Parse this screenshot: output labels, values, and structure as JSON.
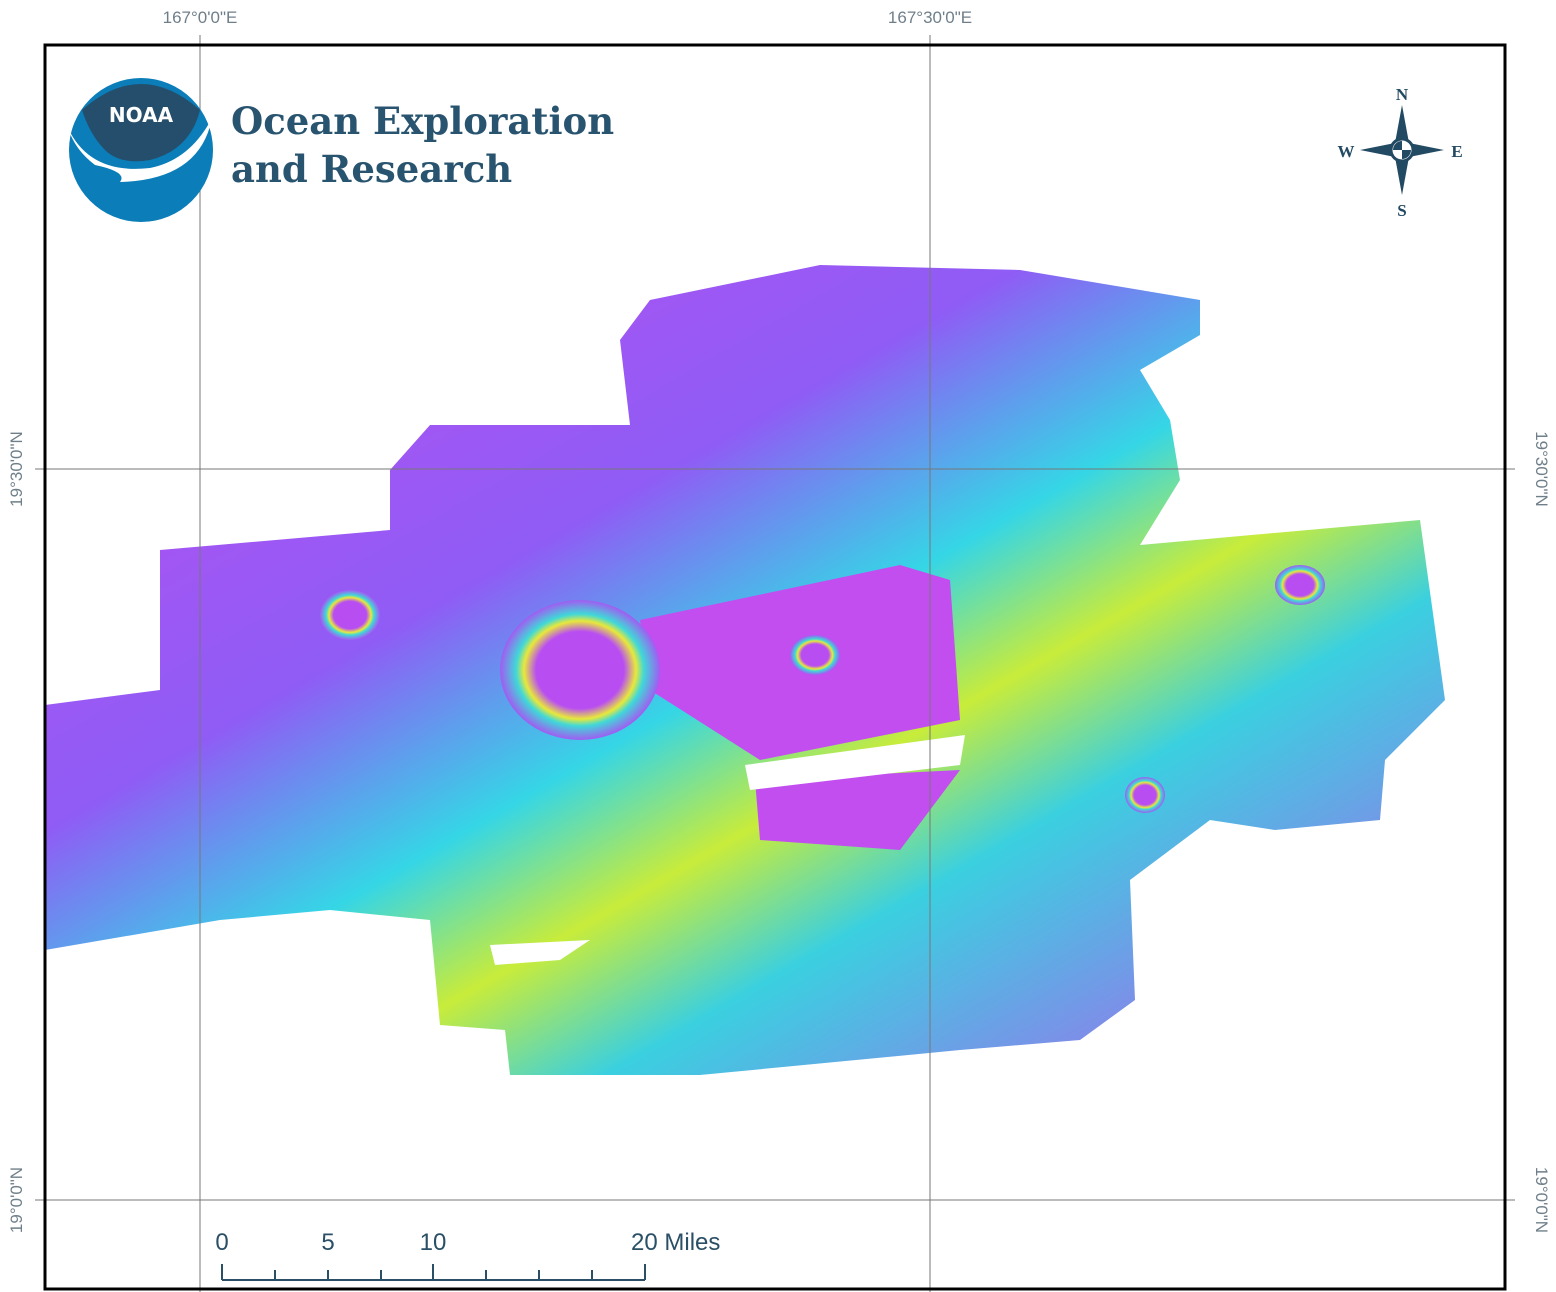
{
  "header": {
    "agency": "NOAA",
    "title_lines": [
      "Ocean Exploration",
      "and Research"
    ]
  },
  "graticule": {
    "top": [
      "167°0'0\"E",
      "167°30'0\"E"
    ],
    "left": [
      "19°30'0\"N",
      "19°0'0\"N"
    ],
    "right": [
      "19°30'0\"N",
      "19°0'0\"N"
    ]
  },
  "compass": {
    "n": "N",
    "e": "E",
    "s": "S",
    "w": "W"
  },
  "scale_bar": {
    "labels": [
      "0",
      "5",
      "10",
      "20 Miles"
    ]
  }
}
